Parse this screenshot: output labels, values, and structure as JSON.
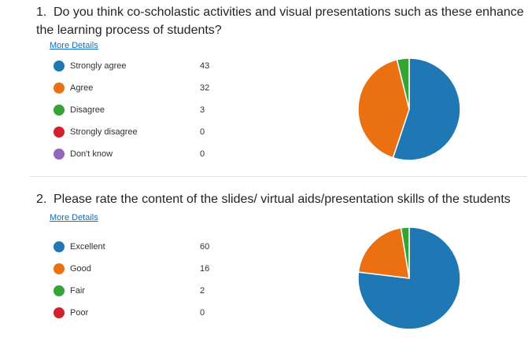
{
  "colors": {
    "blue": "#1f78b4",
    "orange": "#ea7012",
    "green": "#35a336",
    "red": "#d2202f",
    "purple": "#9467bd"
  },
  "more_details_label": "More Details",
  "chart_data": [
    {
      "type": "pie",
      "number": "1.",
      "title": "Do you think co-scholastic activities and visual presentations such as these enhance the learning process of students?",
      "categories": [
        "Strongly agree",
        "Agree",
        "Disagree",
        "Strongly disagree",
        "Don't know"
      ],
      "values": [
        43,
        32,
        3,
        0,
        0
      ],
      "colors": [
        "#1f78b4",
        "#ea7012",
        "#35a336",
        "#d2202f",
        "#9467bd"
      ]
    },
    {
      "type": "pie",
      "number": "2.",
      "title": "Please rate the content of the slides/ virtual aids/presentation skills of the students",
      "categories": [
        "Excellent",
        "Good",
        "Fair",
        "Poor"
      ],
      "values": [
        60,
        16,
        2,
        0
      ],
      "colors": [
        "#1f78b4",
        "#ea7012",
        "#35a336",
        "#d2202f"
      ]
    }
  ]
}
